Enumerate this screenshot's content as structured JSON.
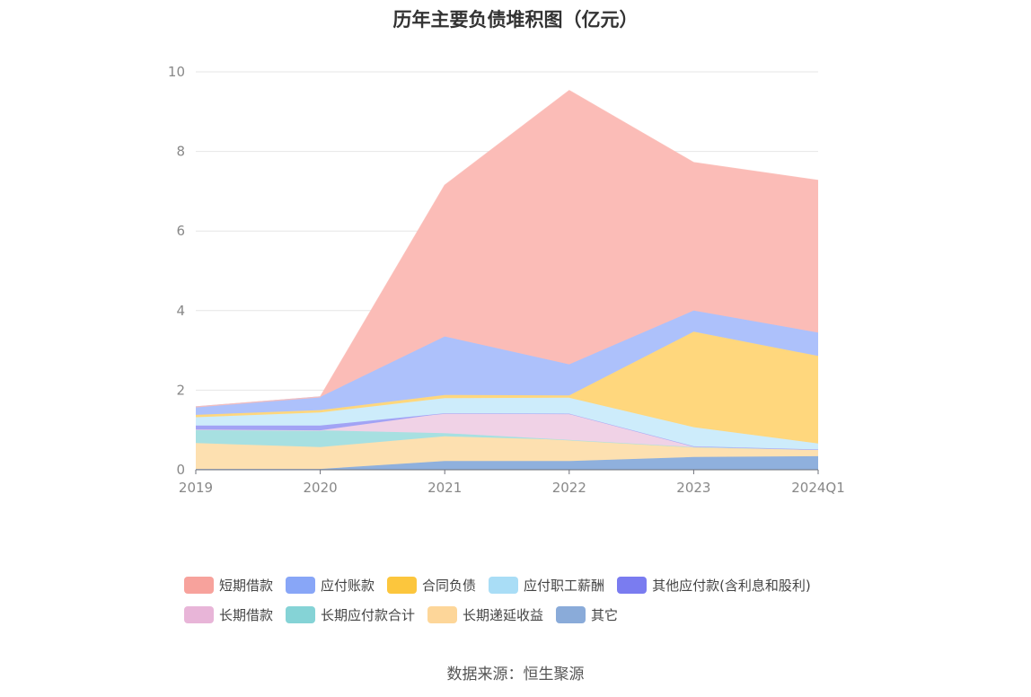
{
  "title": "历年主要负债堆积图（亿元）",
  "source": "数据来源：恒生聚源",
  "chart_data": {
    "type": "area",
    "stacked": true,
    "title": "历年主要负债堆积图（亿元）",
    "categories": [
      "2019",
      "2020",
      "2021",
      "2022",
      "2023",
      "2024Q1"
    ],
    "ylim": [
      0,
      10
    ],
    "yticks": [
      "0",
      "2",
      "4",
      "6",
      "8",
      "10"
    ],
    "grid": true,
    "legend_position": "bottom",
    "series": [
      {
        "name": "其它",
        "color": "#8fb0dd",
        "values": [
          0.02,
          0.02,
          0.22,
          0.22,
          0.32,
          0.34
        ]
      },
      {
        "name": "长期递延收益",
        "color": "#fde0b0",
        "values": [
          0.65,
          0.55,
          0.62,
          0.53,
          0.25,
          0.17
        ]
      },
      {
        "name": "长期应付款合计",
        "color": "#a7e0e1",
        "values": [
          0.34,
          0.42,
          0.08,
          0.0,
          0.0,
          0.0
        ]
      },
      {
        "name": "长期借款",
        "color": "#f0d2e6",
        "values": [
          0.0,
          0.0,
          0.5,
          0.66,
          0.02,
          0.0
        ]
      },
      {
        "name": "其他应付款(含利息和股利)",
        "color": "#a2a3f5",
        "values": [
          0.1,
          0.12,
          0.0,
          0.0,
          0.0,
          0.0
        ]
      },
      {
        "name": "应付职工薪酬",
        "color": "#cdecfb",
        "values": [
          0.21,
          0.33,
          0.38,
          0.4,
          0.48,
          0.15
        ]
      },
      {
        "name": "合同负债",
        "color": "#ffd77d",
        "values": [
          0.06,
          0.06,
          0.08,
          0.06,
          2.4,
          2.2
        ]
      },
      {
        "name": "应付账款",
        "color": "#adc1fb",
        "values": [
          0.2,
          0.33,
          1.47,
          0.78,
          0.53,
          0.59
        ]
      },
      {
        "name": "短期借款",
        "color": "#fbbcb7",
        "values": [
          0.0,
          0.0,
          3.8,
          6.88,
          3.72,
          3.82
        ]
      }
    ]
  },
  "legend": {
    "row1": [
      {
        "name": "短期借款",
        "color": "#f7a29c"
      },
      {
        "name": "应付账款",
        "color": "#88a6f7"
      },
      {
        "name": "合同负债",
        "color": "#fcc63d"
      },
      {
        "name": "应付职工薪酬",
        "color": "#a9ddf6"
      },
      {
        "name": "其他应付款(含利息和股利)",
        "color": "#7a7cf0"
      }
    ],
    "row2": [
      {
        "name": "长期借款",
        "color": "#e8b5d8"
      },
      {
        "name": "长期应付款合计",
        "color": "#85d3d6"
      },
      {
        "name": "长期递延收益",
        "color": "#fdd699"
      },
      {
        "name": "其它",
        "color": "#8aabd9"
      }
    ]
  }
}
